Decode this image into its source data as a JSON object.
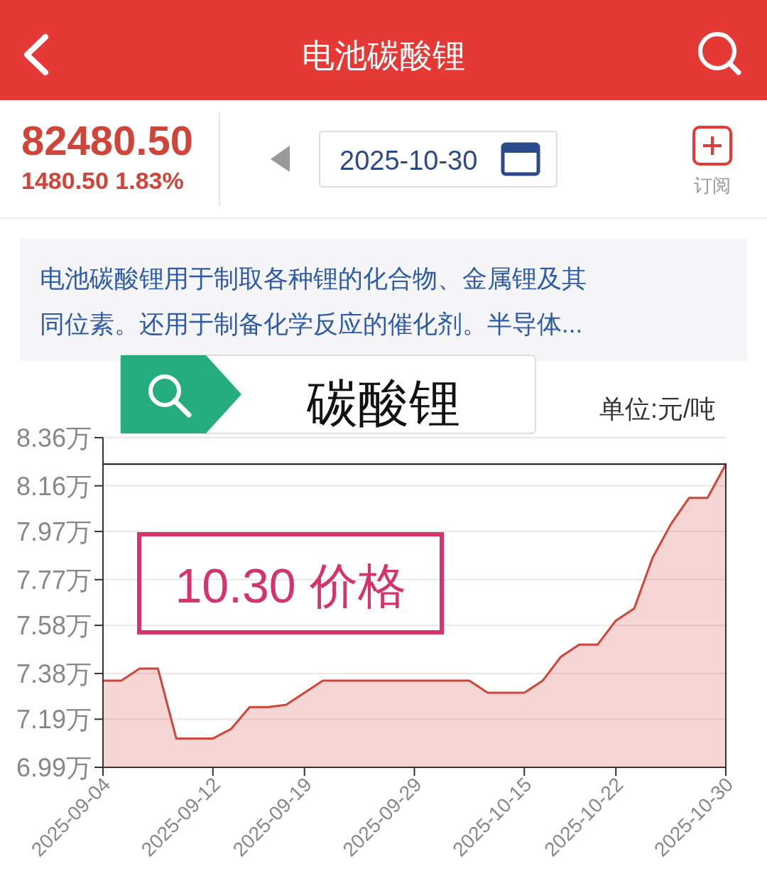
{
  "chart_data": {
    "type": "area",
    "title": "电池碳酸锂",
    "subtitle": "电池碳酸锂用于制取各种锂的化合物、金属锂及其同位素。还用于制备化学反应的催化剂。半导体...",
    "annotations": [
      "82480.50",
      "1480.50  1.83%",
      "2025-10-30",
      "订阅",
      "单位:元/吨",
      "碳酸锂",
      "10.30 价格"
    ],
    "categories": [
      "2025-09-04",
      null,
      null,
      null,
      null,
      null,
      "2025-09-12",
      null,
      null,
      null,
      null,
      "2025-09-19",
      null,
      null,
      null,
      null,
      null,
      "2025-09-29",
      null,
      null,
      null,
      null,
      null,
      "2025-10-15",
      null,
      null,
      null,
      null,
      "2025-10-22",
      null,
      null,
      null,
      null,
      null,
      "2025-10-30"
    ],
    "series": [
      {
        "color": "#d0453a",
        "values": [
          7.35,
          7.35,
          7.4,
          7.4,
          7.11,
          7.11,
          7.11,
          7.15,
          7.24,
          7.24,
          7.25,
          7.3,
          7.35,
          7.35,
          7.35,
          7.35,
          7.35,
          7.35,
          7.35,
          7.35,
          7.35,
          7.3,
          7.3,
          7.3,
          7.35,
          7.45,
          7.5,
          7.5,
          7.6,
          7.65,
          7.86,
          8.0,
          8.11,
          8.11,
          8.25
        ]
      }
    ],
    "ylim": [
      6.99,
      8.36
    ],
    "yticks": [
      {
        "value": 6.99,
        "label": "6.99万"
      },
      {
        "value": 7.19,
        "label": "7.19万"
      },
      {
        "value": 7.38,
        "label": "7.38万"
      },
      {
        "value": 7.58,
        "label": "7.58万"
      },
      {
        "value": 7.77,
        "label": "7.77万"
      },
      {
        "value": 7.97,
        "label": "7.97万"
      },
      {
        "value": 8.16,
        "label": "8.16万"
      },
      {
        "value": 8.36,
        "label": "8.36万"
      }
    ],
    "ref_lines": [
      {
        "axis": "y",
        "value": 8.25,
        "color": "#111111"
      }
    ],
    "grid": "y"
  }
}
